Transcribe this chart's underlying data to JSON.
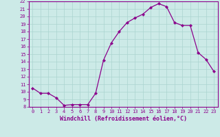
{
  "x": [
    0,
    1,
    2,
    3,
    4,
    5,
    6,
    7,
    8,
    9,
    10,
    11,
    12,
    13,
    14,
    15,
    16,
    17,
    18,
    19,
    20,
    21,
    22,
    23
  ],
  "y": [
    10.5,
    9.8,
    9.8,
    9.2,
    8.2,
    8.3,
    8.3,
    8.3,
    9.8,
    14.2,
    16.5,
    18.0,
    19.2,
    19.8,
    20.3,
    21.2,
    21.7,
    21.3,
    19.2,
    18.8,
    18.8,
    15.2,
    14.3,
    12.7
  ],
  "line_color": "#8B008B",
  "marker": "D",
  "marker_size": 2.2,
  "bg_color": "#cceae7",
  "grid_color": "#aad4d0",
  "axis_color": "#8B008B",
  "xlabel": "Windchill (Refroidissement éolien,°C)",
  "ylim": [
    8,
    22
  ],
  "xlim": [
    -0.5,
    23.5
  ],
  "yticks": [
    8,
    9,
    10,
    11,
    12,
    13,
    14,
    15,
    16,
    17,
    18,
    19,
    20,
    21,
    22
  ],
  "xticks": [
    0,
    1,
    2,
    3,
    4,
    5,
    6,
    7,
    8,
    9,
    10,
    11,
    12,
    13,
    14,
    15,
    16,
    17,
    18,
    19,
    20,
    21,
    22,
    23
  ],
  "tick_font_size": 5.0,
  "label_font_size": 6.0,
  "linewidth": 0.9
}
